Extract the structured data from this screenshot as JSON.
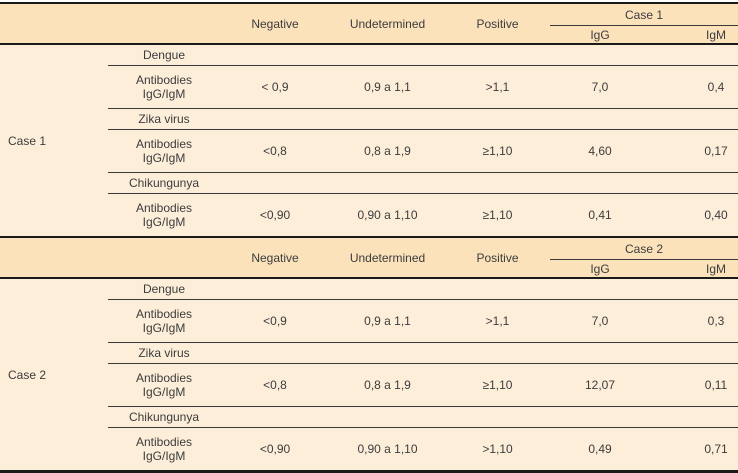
{
  "colors": {
    "band_bg": "#fbe2bb",
    "body_bg": "#fdeeda",
    "thick_line": "#1a1a1a",
    "thin_line": "#3a3a3a",
    "text": "#3c3c3c"
  },
  "column_headers": {
    "negative": "Negative",
    "undetermined": "Undetermined",
    "positive": "Positive",
    "igg": "IgG",
    "igm": "IgM"
  },
  "antibody_label": {
    "line1": "Antibodies",
    "line2": "IgG/IgM"
  },
  "chart_data": {
    "type": "table",
    "sections": [
      {
        "case": "Case 1",
        "rows": [
          {
            "disease": "Dengue",
            "negative": "< 0,9",
            "undetermined": "0,9 a 1,1",
            "positive": ">1,1",
            "igg": "7,0",
            "igm": "0,4"
          },
          {
            "disease": "Zika virus",
            "negative": "<0,8",
            "undetermined": "0,8 a 1,9",
            "positive": "≥1,10",
            "igg": "4,60",
            "igm": "0,17"
          },
          {
            "disease": "Chikungunya",
            "negative": "<0,90",
            "undetermined": "0,90 a 1,10",
            "positive": "≥1,10",
            "igg": "0,41",
            "igm": "0,40"
          }
        ]
      },
      {
        "case": "Case 2",
        "rows": [
          {
            "disease": "Dengue",
            "negative": "<0,9",
            "undetermined": "0,9 a 1,1",
            "positive": ">1,1",
            "igg": "7,0",
            "igm": "0,3"
          },
          {
            "disease": "Zika virus",
            "negative": "<0,8",
            "undetermined": "0,8 a 1,9",
            "positive": "≥1,10",
            "igg": "12,07",
            "igm": "0,11"
          },
          {
            "disease": "Chikungunya",
            "negative": "<0,90",
            "undetermined": "0,90 a 1,10",
            "positive": ">1,10",
            "igg": "0,49",
            "igm": "0,71"
          }
        ]
      }
    ]
  },
  "sections": [
    {
      "case_label": "Case 1",
      "group_label": "Case 1",
      "rows": [
        {
          "label": "Dengue"
        },
        {
          "negative": "< 0,9",
          "undetermined": "0,9 a 1,1",
          "positive": ">1,1",
          "igg": "7,0",
          "igm": "0,4"
        },
        {
          "label": "Zika virus"
        },
        {
          "negative": "<0,8",
          "undetermined": "0,8 a 1,9",
          "positive": "≥1,10",
          "igg": "4,60",
          "igm": "0,17"
        },
        {
          "label": "Chikungunya"
        },
        {
          "negative": "<0,90",
          "undetermined": "0,90 a 1,10",
          "positive": "≥1,10",
          "igg": "0,41",
          "igm": "0,40"
        }
      ]
    },
    {
      "case_label": "Case 2",
      "group_label": "Case 2",
      "rows": [
        {
          "label": "Dengue"
        },
        {
          "negative": "<0,9",
          "undetermined": "0,9 a 1,1",
          "positive": ">1,1",
          "igg": "7,0",
          "igm": "0,3"
        },
        {
          "label": "Zika virus"
        },
        {
          "negative": "<0,8",
          "undetermined": "0,8 a 1,9",
          "positive": "≥1,10",
          "igg": "12,07",
          "igm": "0,11"
        },
        {
          "label": "Chikungunya"
        },
        {
          "negative": "<0,90",
          "undetermined": "0,90 a 1,10",
          "positive": ">1,10",
          "igg": "0,49",
          "igm": "0,71"
        }
      ]
    }
  ]
}
